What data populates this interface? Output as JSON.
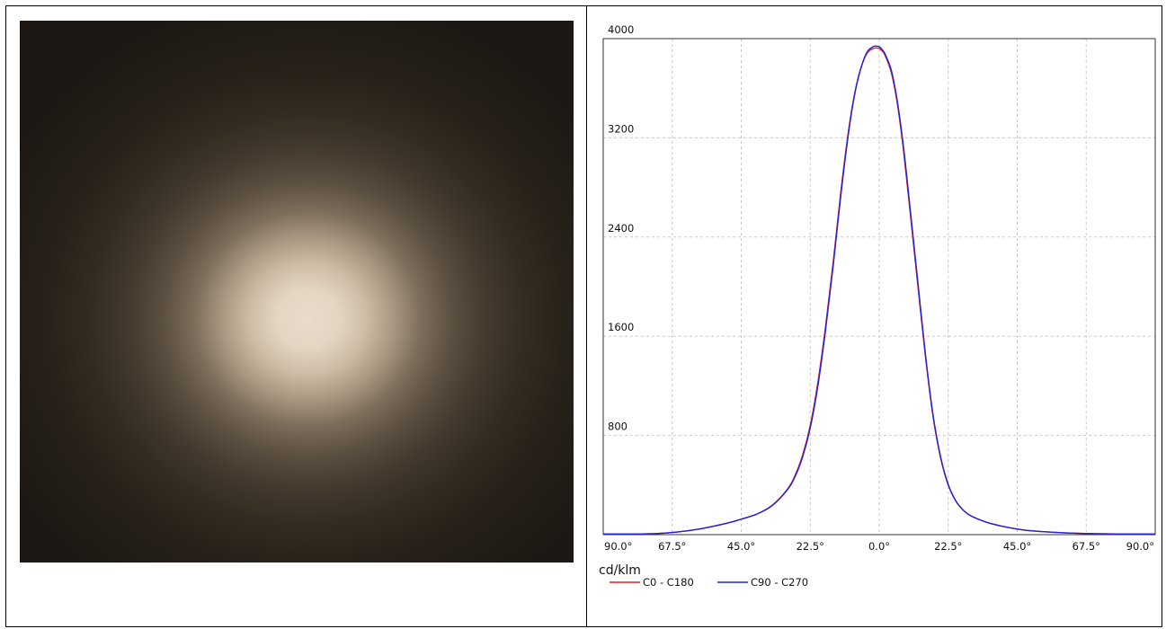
{
  "photo": {
    "icon": "light-beam-photo"
  },
  "chart_data": {
    "type": "line",
    "title": "",
    "xlabel": "",
    "ylabel": "cd/klm",
    "xlim": [
      -90,
      90
    ],
    "ylim": [
      0,
      4000
    ],
    "grid": true,
    "legend_position": "bottom-left",
    "x_tick_values": [
      -90,
      -67.5,
      -45,
      -22.5,
      0,
      22.5,
      45,
      67.5,
      90
    ],
    "x_tick_labels": [
      "90.0°",
      "67.5°",
      "45.0°",
      "22.5°",
      "0.0°",
      "22.5°",
      "45.0°",
      "67.5°",
      "90.0°"
    ],
    "y_tick_values": [
      800,
      1600,
      2400,
      3200,
      4000
    ],
    "y_tick_labels": [
      "800",
      "1600",
      "2400",
      "3200",
      "4000"
    ],
    "series": [
      {
        "name": "C0 - C180",
        "color": "#e02020",
        "x": [
          -90,
          -80,
          -70,
          -60,
          -50,
          -45,
          -40,
          -35,
          -30,
          -27.5,
          -25,
          -22.5,
          -20,
          -17.5,
          -15,
          -12.5,
          -10,
          -8,
          -6,
          -4,
          -2,
          -1,
          0,
          1,
          2,
          4,
          6,
          8,
          10,
          12.5,
          15,
          17.5,
          20,
          22.5,
          25,
          27.5,
          30,
          35,
          40,
          45,
          50,
          60,
          70,
          80,
          90
        ],
        "values": [
          5,
          5,
          12,
          40,
          90,
          125,
          165,
          235,
          365,
          475,
          640,
          880,
          1230,
          1680,
          2200,
          2770,
          3260,
          3560,
          3760,
          3880,
          3920,
          3925,
          3920,
          3900,
          3860,
          3720,
          3460,
          3080,
          2620,
          2030,
          1450,
          960,
          620,
          400,
          270,
          195,
          150,
          100,
          68,
          45,
          30,
          15,
          8,
          5,
          5
        ]
      },
      {
        "name": "C90 - C270",
        "color": "#2020e0",
        "x": [
          -90,
          -80,
          -70,
          -60,
          -50,
          -45,
          -40,
          -35,
          -30,
          -27.5,
          -25,
          -22.5,
          -20,
          -17.5,
          -15,
          -12.5,
          -10,
          -8,
          -6,
          -4,
          -2,
          -1,
          0,
          1,
          2,
          4,
          6,
          8,
          10,
          12.5,
          15,
          17.5,
          20,
          22.5,
          25,
          27.5,
          30,
          35,
          40,
          45,
          50,
          60,
          70,
          80,
          90
        ],
        "values": [
          5,
          5,
          12,
          40,
          90,
          125,
          165,
          232,
          360,
          465,
          625,
          860,
          1200,
          1650,
          2170,
          2740,
          3240,
          3550,
          3760,
          3890,
          3935,
          3940,
          3935,
          3910,
          3870,
          3740,
          3480,
          3110,
          2650,
          2060,
          1470,
          975,
          630,
          405,
          272,
          196,
          150,
          100,
          68,
          45,
          30,
          15,
          8,
          5,
          5
        ]
      }
    ]
  }
}
